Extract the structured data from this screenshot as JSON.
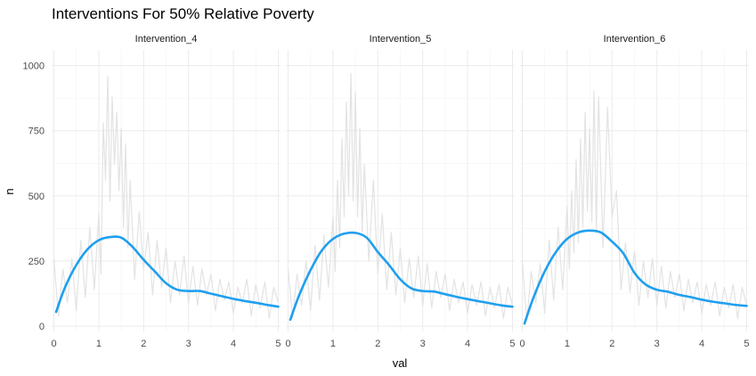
{
  "chart_data": {
    "type": "line",
    "title": "Interventions For 50% Relative Poverty",
    "xlabel": "val",
    "ylabel": "n",
    "xlim": [
      -0.05,
      5.05
    ],
    "ylim": [
      -20,
      1060
    ],
    "x_ticks": [
      0,
      1,
      2,
      3,
      4,
      5
    ],
    "y_ticks": [
      0,
      250,
      500,
      750,
      1000
    ],
    "grid": true,
    "legend": "none",
    "colors": {
      "raw": "#e3e3e3",
      "smooth": "#1e9ff0",
      "grid_major": "#ebebeb",
      "grid_minor": "#f4f4f4"
    },
    "panels": [
      {
        "name": "Intervention_4",
        "raw": {
          "x": [
            0.0,
            0.1,
            0.2,
            0.3,
            0.4,
            0.5,
            0.6,
            0.7,
            0.8,
            0.9,
            1.0,
            1.05,
            1.1,
            1.15,
            1.2,
            1.25,
            1.3,
            1.35,
            1.4,
            1.45,
            1.5,
            1.55,
            1.6,
            1.65,
            1.7,
            1.8,
            1.9,
            2.0,
            2.1,
            2.2,
            2.3,
            2.4,
            2.5,
            2.6,
            2.7,
            2.8,
            2.9,
            3.0,
            3.1,
            3.2,
            3.3,
            3.4,
            3.5,
            3.6,
            3.7,
            3.8,
            3.9,
            4.0,
            4.1,
            4.2,
            4.3,
            4.4,
            4.5,
            4.6,
            4.7,
            4.8,
            4.9,
            5.0
          ],
          "y": [
            260,
            40,
            220,
            90,
            260,
            60,
            330,
            110,
            380,
            140,
            430,
            200,
            780,
            560,
            960,
            480,
            880,
            620,
            820,
            520,
            760,
            380,
            700,
            300,
            560,
            180,
            440,
            220,
            360,
            120,
            330,
            150,
            300,
            90,
            250,
            120,
            270,
            90,
            230,
            80,
            220,
            120,
            200,
            60,
            180,
            100,
            170,
            50,
            150,
            90,
            180,
            40,
            160,
            70,
            170,
            30,
            150,
            90
          ]
        },
        "smooth": {
          "x": [
            0.05,
            0.25,
            0.5,
            0.75,
            1.0,
            1.25,
            1.5,
            1.75,
            2.0,
            2.25,
            2.5,
            2.75,
            3.0,
            3.25,
            3.5,
            3.75,
            4.0,
            4.25,
            4.5,
            4.75,
            5.0
          ],
          "y": [
            55,
            150,
            235,
            295,
            330,
            342,
            340,
            305,
            255,
            210,
            165,
            140,
            135,
            135,
            125,
            115,
            105,
            97,
            90,
            82,
            75
          ]
        }
      },
      {
        "name": "Intervention_5",
        "raw": {
          "x": [
            0.0,
            0.1,
            0.2,
            0.3,
            0.4,
            0.5,
            0.6,
            0.7,
            0.8,
            0.9,
            1.0,
            1.05,
            1.1,
            1.15,
            1.2,
            1.25,
            1.3,
            1.35,
            1.4,
            1.45,
            1.5,
            1.55,
            1.6,
            1.65,
            1.7,
            1.8,
            1.9,
            2.0,
            2.1,
            2.2,
            2.3,
            2.4,
            2.5,
            2.6,
            2.7,
            2.8,
            2.9,
            3.0,
            3.1,
            3.2,
            3.3,
            3.4,
            3.5,
            3.6,
            3.7,
            3.8,
            3.9,
            4.0,
            4.1,
            4.2,
            4.3,
            4.4,
            4.5,
            4.6,
            4.7,
            4.8,
            4.9,
            5.0
          ],
          "y": [
            220,
            30,
            200,
            80,
            250,
            60,
            310,
            100,
            350,
            150,
            420,
            210,
            560,
            300,
            720,
            420,
            860,
            500,
            970,
            480,
            900,
            420,
            760,
            360,
            620,
            250,
            560,
            200,
            430,
            140,
            360,
            120,
            300,
            90,
            260,
            110,
            270,
            80,
            240,
            70,
            210,
            110,
            200,
            60,
            180,
            90,
            170,
            50,
            160,
            80,
            170,
            40,
            150,
            70,
            160,
            30,
            150,
            80
          ]
        },
        "smooth": {
          "x": [
            0.05,
            0.25,
            0.5,
            0.75,
            1.0,
            1.25,
            1.5,
            1.75,
            2.0,
            2.25,
            2.5,
            2.75,
            3.0,
            3.25,
            3.5,
            3.75,
            4.0,
            4.25,
            4.5,
            4.75,
            5.0
          ],
          "y": [
            25,
            120,
            215,
            290,
            335,
            355,
            358,
            340,
            285,
            235,
            180,
            145,
            135,
            133,
            123,
            113,
            104,
            96,
            88,
            80,
            75
          ]
        }
      },
      {
        "name": "Intervention_6",
        "raw": {
          "x": [
            0.0,
            0.1,
            0.2,
            0.3,
            0.4,
            0.5,
            0.6,
            0.7,
            0.8,
            0.9,
            1.0,
            1.05,
            1.1,
            1.15,
            1.2,
            1.25,
            1.3,
            1.35,
            1.4,
            1.45,
            1.5,
            1.55,
            1.6,
            1.65,
            1.7,
            1.8,
            1.9,
            2.0,
            2.1,
            2.2,
            2.3,
            2.4,
            2.5,
            2.6,
            2.7,
            2.8,
            2.9,
            3.0,
            3.1,
            3.2,
            3.3,
            3.4,
            3.5,
            3.6,
            3.7,
            3.8,
            3.9,
            4.0,
            4.1,
            4.2,
            4.3,
            4.4,
            4.5,
            4.6,
            4.7,
            4.8,
            4.9,
            5.0
          ],
          "y": [
            250,
            20,
            210,
            90,
            240,
            50,
            330,
            100,
            380,
            140,
            460,
            220,
            520,
            280,
            640,
            320,
            720,
            380,
            820,
            440,
            760,
            400,
            900,
            360,
            880,
            300,
            840,
            420,
            520,
            140,
            320,
            130,
            290,
            80,
            250,
            110,
            260,
            80,
            230,
            70,
            210,
            110,
            200,
            60,
            180,
            90,
            170,
            50,
            160,
            80,
            170,
            40,
            150,
            70,
            160,
            30,
            150,
            80
          ]
        },
        "smooth": {
          "x": [
            0.05,
            0.25,
            0.5,
            0.75,
            1.0,
            1.25,
            1.5,
            1.75,
            2.0,
            2.25,
            2.5,
            2.75,
            3.0,
            3.25,
            3.5,
            3.75,
            4.0,
            4.25,
            4.5,
            4.75,
            5.0
          ],
          "y": [
            10,
            110,
            210,
            285,
            335,
            360,
            367,
            360,
            325,
            280,
            205,
            160,
            140,
            132,
            120,
            112,
            102,
            94,
            88,
            82,
            78
          ]
        }
      }
    ]
  }
}
